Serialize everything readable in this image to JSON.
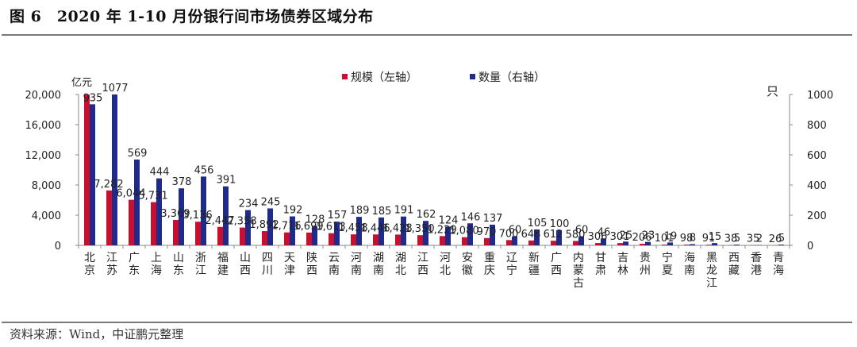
{
  "header": {
    "title": "图 6　2020 年 1-10 月份银行间市场债券区域分布"
  },
  "footer": {
    "source": "资料来源：Wind，中证鹏元整理"
  },
  "colors": {
    "scale": "#c8102e",
    "count": "#1f2a8a"
  },
  "chart_data": {
    "type": "bar",
    "title": "2020 年 1-10 月份银行间市场债券区域分布",
    "categories": [
      "北京",
      "江苏",
      "广东",
      "上海",
      "山东",
      "浙江",
      "福建",
      "山西",
      "四川",
      "天津",
      "陕西",
      "云南",
      "河南",
      "湖南",
      "湖北",
      "江西",
      "河北",
      "安徽",
      "重庆",
      "辽宁",
      "新疆",
      "广西",
      "内蒙古",
      "甘肃",
      "吉林",
      "贵州",
      "宁夏",
      "海南",
      "黑龙江",
      "西藏",
      "香港",
      "青海"
    ],
    "series": [
      {
        "name": "规模（左轴）",
        "axis": "left",
        "values": [
          20000,
          7282,
          6044,
          5731,
          3369,
          3136,
          2447,
          2358,
          1892,
          1716,
          1699,
          1613,
          1458,
          1446,
          1428,
          1350,
          1229,
          1080,
          970,
          700,
          648,
          612,
          580,
          306,
          301,
          206,
          101,
          98,
          91,
          38,
          35,
          26
        ],
        "labels": [
          "",
          "7,282",
          "6,044",
          "5,731",
          "3,369",
          "3,136",
          "2,447",
          "2,358",
          "1,892",
          "1,716",
          "1,699",
          "1,613",
          "1,458",
          "1,446",
          "1,428",
          "1,350",
          "1,229",
          "1,080",
          "970",
          "700",
          "648",
          "612",
          "580",
          "306",
          "301",
          "206",
          "101",
          "98",
          "91",
          "38",
          "35",
          "26"
        ]
      },
      {
        "name": "数量（右轴）",
        "axis": "right",
        "values": [
          935,
          1077,
          569,
          444,
          378,
          456,
          391,
          234,
          245,
          192,
          128,
          157,
          189,
          185,
          191,
          162,
          124,
          146,
          137,
          60,
          105,
          100,
          60,
          46,
          25,
          23,
          19,
          8,
          15,
          5,
          2,
          5
        ],
        "labels": [
          "935",
          "1077",
          "569",
          "444",
          "378",
          "456",
          "391",
          "234",
          "245",
          "192",
          "128",
          "157",
          "189",
          "185",
          "191",
          "162",
          "124",
          "146",
          "137",
          "60",
          "105",
          "100",
          "60",
          "46",
          "25",
          "23",
          "19",
          "8",
          "15",
          "5",
          "2",
          "5"
        ]
      }
    ],
    "left_axis": {
      "label": "亿元",
      "ylim": [
        0,
        20000
      ],
      "ticks": [
        "0",
        "4,000",
        "8,000",
        "12,000",
        "16,000",
        "20,000"
      ]
    },
    "right_axis": {
      "label": "只",
      "ylim": [
        0,
        1000
      ],
      "ticks": [
        "0",
        "200",
        "400",
        "600",
        "800",
        "1000"
      ]
    },
    "legend": {
      "position": "top-center",
      "items": [
        "规模（左轴）",
        "数量（右轴）"
      ]
    },
    "grid": false
  }
}
